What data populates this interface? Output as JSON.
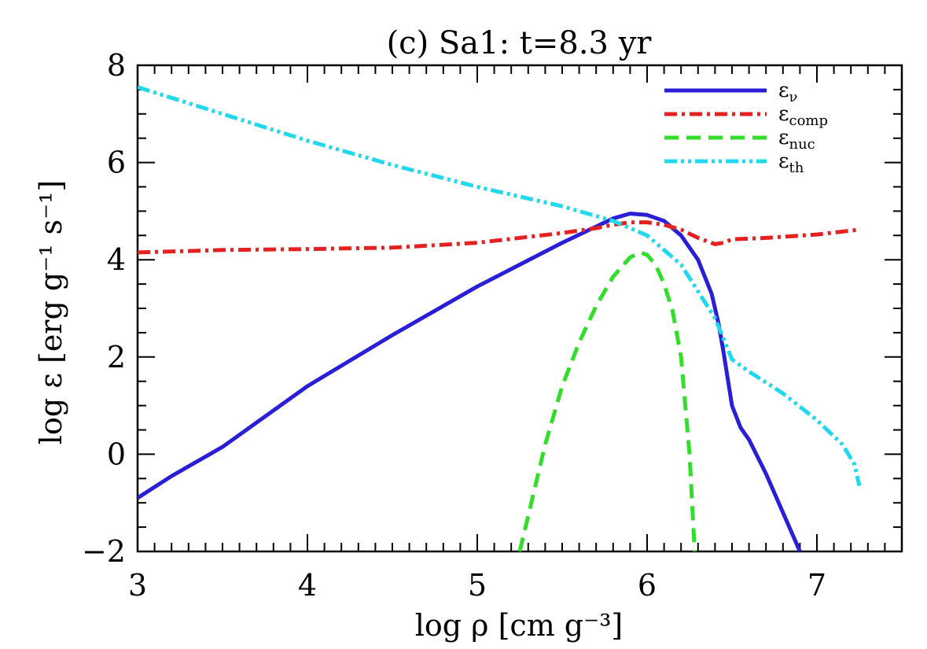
{
  "chart_data": {
    "type": "line",
    "title": "(c) Sa1: t=8.3 yr",
    "xlabel": "log ρ [cm g⁻³]",
    "ylabel": "log ε [erg g⁻¹ s⁻¹]",
    "xlim": [
      3,
      7.5
    ],
    "ylim": [
      -2,
      8
    ],
    "xticks": [
      3,
      4,
      5,
      6,
      7
    ],
    "xtick_labels": [
      "3",
      "4",
      "5",
      "6",
      "7"
    ],
    "yticks": [
      -2,
      0,
      2,
      4,
      6,
      8
    ],
    "ytick_labels": [
      "−2",
      "0",
      "2",
      "4",
      "6",
      "8"
    ],
    "grid": false,
    "legend_position": "top-right",
    "series": [
      {
        "name": "εν",
        "color": "#2a1fd6",
        "dash": "solid",
        "x": [
          3.0,
          3.2,
          3.5,
          4.0,
          4.5,
          5.0,
          5.5,
          5.8,
          5.9,
          6.0,
          6.1,
          6.2,
          6.3,
          6.38,
          6.42,
          6.45,
          6.5,
          6.55,
          6.6,
          6.7,
          6.8,
          6.9
        ],
        "y": [
          -0.9,
          -0.45,
          0.15,
          1.4,
          2.45,
          3.45,
          4.35,
          4.85,
          4.95,
          4.92,
          4.8,
          4.5,
          4.0,
          3.3,
          2.7,
          2.1,
          1.0,
          0.55,
          0.3,
          -0.4,
          -1.2,
          -2.0
        ]
      },
      {
        "name": "εcomp",
        "color": "#e52020",
        "dash": "dashdot",
        "x": [
          3.0,
          3.5,
          4.0,
          4.5,
          5.0,
          5.5,
          5.7,
          5.8,
          5.9,
          6.0,
          6.1,
          6.2,
          6.3,
          6.4,
          6.45,
          6.5,
          6.7,
          7.0,
          7.25
        ],
        "y": [
          4.15,
          4.2,
          4.22,
          4.25,
          4.35,
          4.55,
          4.65,
          4.72,
          4.77,
          4.77,
          4.72,
          4.62,
          4.45,
          4.32,
          4.35,
          4.42,
          4.45,
          4.52,
          4.62
        ]
      },
      {
        "name": "εnuc",
        "color": "#33dd2a",
        "dash": "dashed",
        "x": [
          5.25,
          5.4,
          5.5,
          5.6,
          5.7,
          5.8,
          5.9,
          5.96,
          6.0,
          6.05,
          6.1,
          6.15,
          6.2,
          6.25,
          6.28
        ],
        "y": [
          -2.0,
          0.2,
          1.4,
          2.3,
          3.05,
          3.65,
          4.05,
          4.15,
          4.1,
          3.9,
          3.5,
          2.95,
          2.0,
          0.0,
          -2.0
        ]
      },
      {
        "name": "εth",
        "color": "#22d8ec",
        "dash": "dashdotdot",
        "x": [
          3.0,
          3.5,
          4.0,
          4.5,
          5.0,
          5.5,
          5.8,
          6.0,
          6.2,
          6.4,
          6.5,
          6.6,
          6.8,
          7.0,
          7.15,
          7.22,
          7.25
        ],
        "y": [
          7.55,
          7.0,
          6.45,
          5.95,
          5.5,
          5.1,
          4.8,
          4.5,
          3.9,
          2.8,
          1.95,
          1.7,
          1.25,
          0.7,
          0.2,
          -0.2,
          -0.65
        ]
      }
    ]
  },
  "legend": [
    {
      "base": "ε",
      "sub": "ν",
      "color": "#2a1fd6",
      "dash": "solid"
    },
    {
      "base": "ε",
      "sub": "comp",
      "color": "#e52020",
      "dash": "dashdot"
    },
    {
      "base": "ε",
      "sub": "nuc",
      "color": "#33dd2a",
      "dash": "dashed"
    },
    {
      "base": "ε",
      "sub": "th",
      "color": "#22d8ec",
      "dash": "dashdotdot"
    }
  ]
}
